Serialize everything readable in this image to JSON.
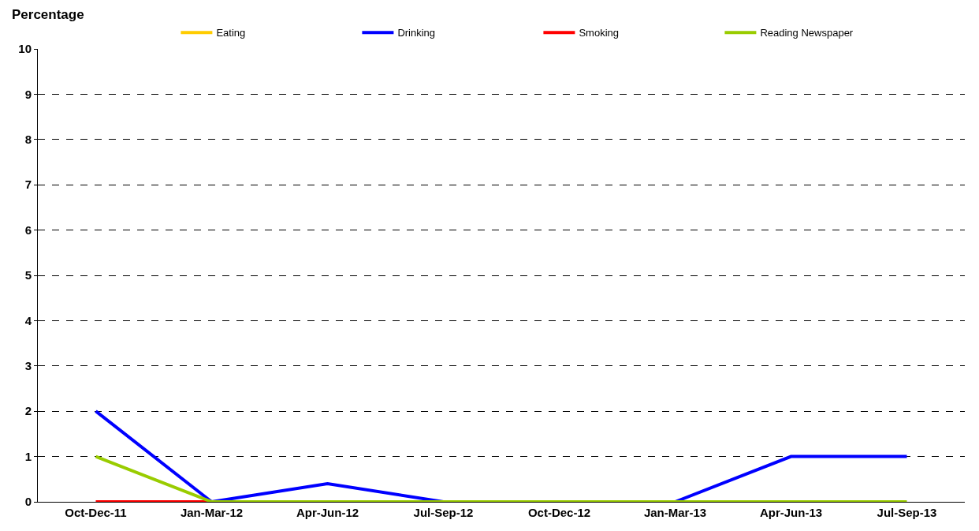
{
  "chart_data": {
    "type": "line",
    "ylabel": "Percentage",
    "categories": [
      "Oct-Dec-11",
      "Jan-Mar-12",
      "Apr-Jun-12",
      "Jul-Sep-12",
      "Oct-Dec-12",
      "Jan-Mar-13",
      "Apr-Jun-13",
      "Jul-Sep-13"
    ],
    "series": [
      {
        "name": "Eating",
        "color": "#ffcc00",
        "values": [
          null,
          null,
          null,
          null,
          null,
          null,
          null,
          null
        ]
      },
      {
        "name": "Drinking",
        "color": "#0000ff",
        "values": [
          2,
          0,
          0.4,
          0,
          0,
          0,
          1,
          1
        ]
      },
      {
        "name": "Smoking",
        "color": "#ff0000",
        "values": [
          0,
          0,
          null,
          null,
          null,
          null,
          null,
          null
        ]
      },
      {
        "name": "Reading Newspaper",
        "color": "#99cc00",
        "values": [
          1,
          0,
          0,
          0,
          0,
          0,
          0,
          0
        ]
      }
    ],
    "ylim": [
      0,
      10
    ],
    "yticks": [
      0,
      1,
      2,
      3,
      4,
      5,
      6,
      7,
      8,
      9,
      10
    ],
    "grid": "y",
    "legend": "top",
    "marker": "none",
    "line_style": "solid"
  }
}
